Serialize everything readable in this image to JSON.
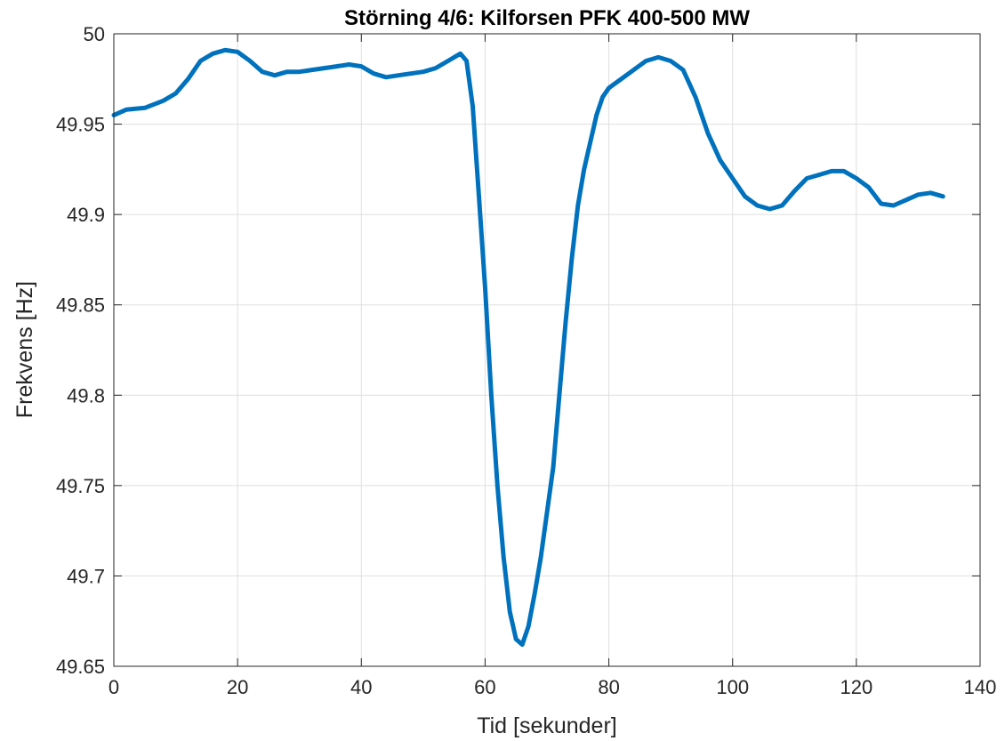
{
  "chart_data": {
    "type": "line",
    "title": "Störning 4/6: Kilforsen PFK 400-500 MW",
    "xlabel": "Tid [sekunder]",
    "ylabel": "Frekvens [Hz]",
    "xlim": [
      0,
      140
    ],
    "ylim": [
      49.65,
      50
    ],
    "xticks": [
      0,
      20,
      40,
      60,
      80,
      100,
      120,
      140
    ],
    "xtick_labels": [
      "0",
      "20",
      "40",
      "60",
      "80",
      "100",
      "120",
      "140"
    ],
    "yticks": [
      49.65,
      49.7,
      49.75,
      49.8,
      49.85,
      49.9,
      49.95,
      50
    ],
    "ytick_labels": [
      "49.65",
      "49.7",
      "49.75",
      "49.8",
      "49.85",
      "49.9",
      "49.95",
      "50"
    ],
    "grid": true,
    "line_color": "#0072BD",
    "series": [
      {
        "x": [
          0,
          2,
          5,
          8,
          10,
          12,
          14,
          16,
          18,
          20,
          22,
          24,
          26,
          28,
          30,
          32,
          34,
          36,
          38,
          40,
          42,
          44,
          46,
          48,
          50,
          52,
          54,
          56,
          57,
          58,
          59,
          60,
          61,
          62,
          63,
          64,
          65,
          66,
          67,
          68,
          69,
          70,
          71,
          72,
          73,
          74,
          75,
          76,
          77,
          78,
          79,
          80,
          82,
          84,
          86,
          88,
          90,
          92,
          94,
          96,
          98,
          100,
          102,
          104,
          106,
          108,
          110,
          112,
          114,
          116,
          118,
          120,
          122,
          124,
          126,
          128,
          130,
          132,
          134
        ],
        "y": [
          49.955,
          49.958,
          49.959,
          49.963,
          49.967,
          49.975,
          49.985,
          49.989,
          49.991,
          49.99,
          49.985,
          49.979,
          49.977,
          49.979,
          49.979,
          49.98,
          49.981,
          49.982,
          49.983,
          49.982,
          49.978,
          49.976,
          49.977,
          49.978,
          49.979,
          49.981,
          49.985,
          49.989,
          49.985,
          49.96,
          49.91,
          49.86,
          49.8,
          49.75,
          49.71,
          49.68,
          49.665,
          49.662,
          49.672,
          49.69,
          49.71,
          49.735,
          49.76,
          49.8,
          49.84,
          49.875,
          49.905,
          49.925,
          49.94,
          49.955,
          49.965,
          49.97,
          49.975,
          49.98,
          49.985,
          49.987,
          49.985,
          49.98,
          49.965,
          49.945,
          49.93,
          49.92,
          49.91,
          49.905,
          49.903,
          49.905,
          49.913,
          49.92,
          49.922,
          49.924,
          49.924,
          49.92,
          49.915,
          49.906,
          49.905,
          49.908,
          49.911,
          49.912,
          49.91
        ]
      }
    ]
  }
}
